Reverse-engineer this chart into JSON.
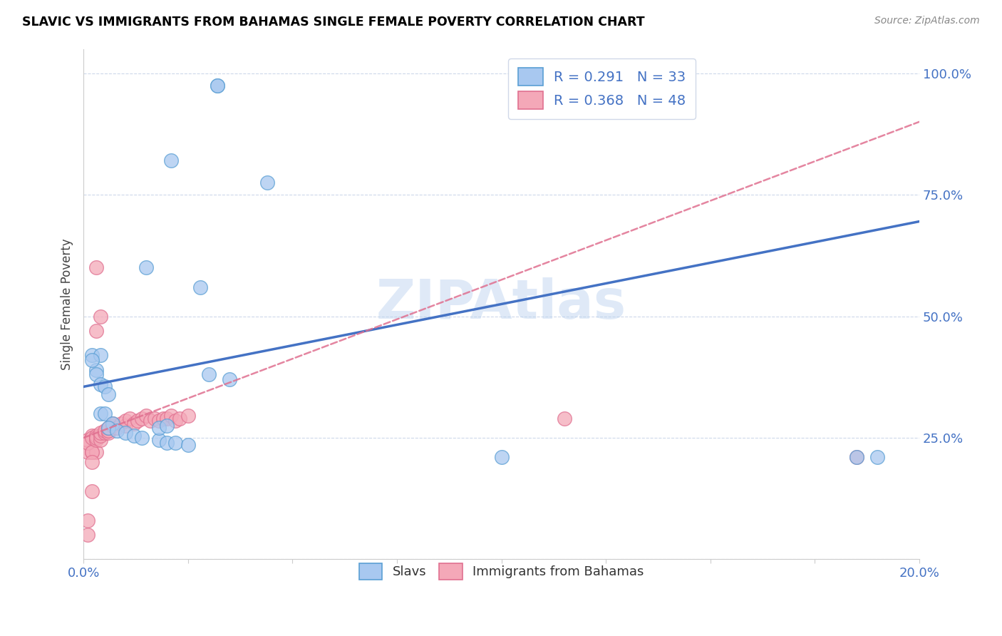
{
  "title": "SLAVIC VS IMMIGRANTS FROM BAHAMAS SINGLE FEMALE POVERTY CORRELATION CHART",
  "source": "Source: ZipAtlas.com",
  "ylabel": "Single Female Poverty",
  "watermark": "ZIPAtlas",
  "xmin": 0.0,
  "xmax": 0.2,
  "ymin": 0.0,
  "ymax": 1.05,
  "R_slavs": 0.291,
  "N_slavs": 33,
  "R_bahamas": 0.368,
  "N_bahamas": 48,
  "color_slavs_fill": "#a8c8f0",
  "color_slavs_edge": "#5a9fd4",
  "color_bahamas_fill": "#f4a8b8",
  "color_bahamas_edge": "#e07090",
  "color_slavs_line": "#4472c4",
  "color_bahamas_line": "#e07090",
  "ytick_color": "#4472c4",
  "xtick_color": "#4472c4",
  "slavs_x": [
    0.032,
    0.032,
    0.021,
    0.044,
    0.015,
    0.028,
    0.002,
    0.003,
    0.004,
    0.003,
    0.002,
    0.004,
    0.005,
    0.006,
    0.004,
    0.005,
    0.007,
    0.006,
    0.008,
    0.01,
    0.012,
    0.014,
    0.018,
    0.02,
    0.022,
    0.025,
    0.03,
    0.035,
    0.018,
    0.02,
    0.1,
    0.19,
    0.185
  ],
  "slavs_y": [
    0.975,
    0.975,
    0.82,
    0.775,
    0.6,
    0.56,
    0.42,
    0.39,
    0.42,
    0.38,
    0.41,
    0.36,
    0.355,
    0.34,
    0.3,
    0.3,
    0.28,
    0.27,
    0.265,
    0.26,
    0.255,
    0.25,
    0.245,
    0.24,
    0.24,
    0.235,
    0.38,
    0.37,
    0.27,
    0.275,
    0.21,
    0.21,
    0.21
  ],
  "bahamas_x": [
    0.001,
    0.001,
    0.002,
    0.002,
    0.003,
    0.001,
    0.002,
    0.002,
    0.003,
    0.003,
    0.003,
    0.004,
    0.004,
    0.004,
    0.005,
    0.005,
    0.006,
    0.006,
    0.006,
    0.007,
    0.007,
    0.008,
    0.009,
    0.01,
    0.01,
    0.011,
    0.012,
    0.013,
    0.014,
    0.015,
    0.016,
    0.017,
    0.018,
    0.019,
    0.02,
    0.021,
    0.022,
    0.023,
    0.025,
    0.003,
    0.003,
    0.004,
    0.001,
    0.001,
    0.002,
    0.002,
    0.115,
    0.185
  ],
  "bahamas_y": [
    0.22,
    0.245,
    0.22,
    0.255,
    0.22,
    0.24,
    0.22,
    0.25,
    0.245,
    0.255,
    0.25,
    0.245,
    0.255,
    0.26,
    0.26,
    0.265,
    0.26,
    0.265,
    0.27,
    0.275,
    0.28,
    0.27,
    0.28,
    0.275,
    0.285,
    0.29,
    0.28,
    0.285,
    0.29,
    0.295,
    0.285,
    0.29,
    0.285,
    0.29,
    0.29,
    0.295,
    0.285,
    0.29,
    0.295,
    0.6,
    0.47,
    0.5,
    0.05,
    0.08,
    0.14,
    0.2,
    0.29,
    0.21
  ],
  "slavs_line_x0": 0.0,
  "slavs_line_x1": 0.2,
  "slavs_line_y0": 0.355,
  "slavs_line_y1": 0.695,
  "bahamas_line_x0": 0.0,
  "bahamas_line_x1": 0.2,
  "bahamas_line_y0": 0.25,
  "bahamas_line_y1": 0.9
}
